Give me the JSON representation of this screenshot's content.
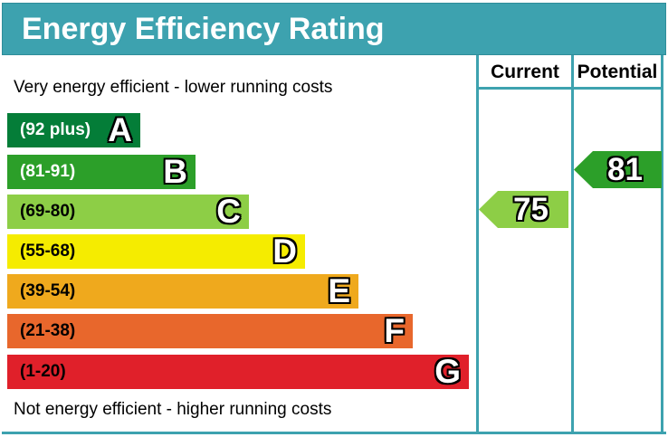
{
  "title": "Energy Efficiency Rating",
  "columns": {
    "current": "Current",
    "potential": "Potential"
  },
  "captions": {
    "top": "Very energy efficient - lower running costs",
    "bottom": "Not energy efficient - higher running costs"
  },
  "colors": {
    "frame": "#3DA2AF",
    "title_background": "#3DA2AF",
    "title_text": "#FFFFFF"
  },
  "chart_data": {
    "type": "bar",
    "subtype": "epc-energy-efficiency-rating",
    "title": "Energy Efficiency Rating",
    "bands": [
      {
        "letter": "A",
        "range_label": "(92 plus)",
        "min": 92,
        "max": 100,
        "color": "#047D38",
        "label_color": "#FFFFFF"
      },
      {
        "letter": "B",
        "range_label": "(81-91)",
        "min": 81,
        "max": 91,
        "color": "#2C9F29",
        "label_color": "#FFFFFF"
      },
      {
        "letter": "C",
        "range_label": "(69-80)",
        "min": 69,
        "max": 80,
        "color": "#8DCE46",
        "label_color": "#000000"
      },
      {
        "letter": "D",
        "range_label": "(55-68)",
        "min": 55,
        "max": 68,
        "color": "#F5EC00",
        "label_color": "#000000"
      },
      {
        "letter": "E",
        "range_label": "(39-54)",
        "min": 39,
        "max": 54,
        "color": "#EFA91D",
        "label_color": "#000000"
      },
      {
        "letter": "F",
        "range_label": "(21-38)",
        "min": 21,
        "max": 38,
        "color": "#E8672C",
        "label_color": "#000000"
      },
      {
        "letter": "G",
        "range_label": "(1-20)",
        "min": 1,
        "max": 20,
        "color": "#E0202A",
        "label_color": "#000000"
      }
    ],
    "markers": {
      "current": {
        "value": 75,
        "band": "C",
        "color": "#8DCE46"
      },
      "potential": {
        "value": 81,
        "band": "B",
        "color": "#2C9F29"
      }
    }
  }
}
